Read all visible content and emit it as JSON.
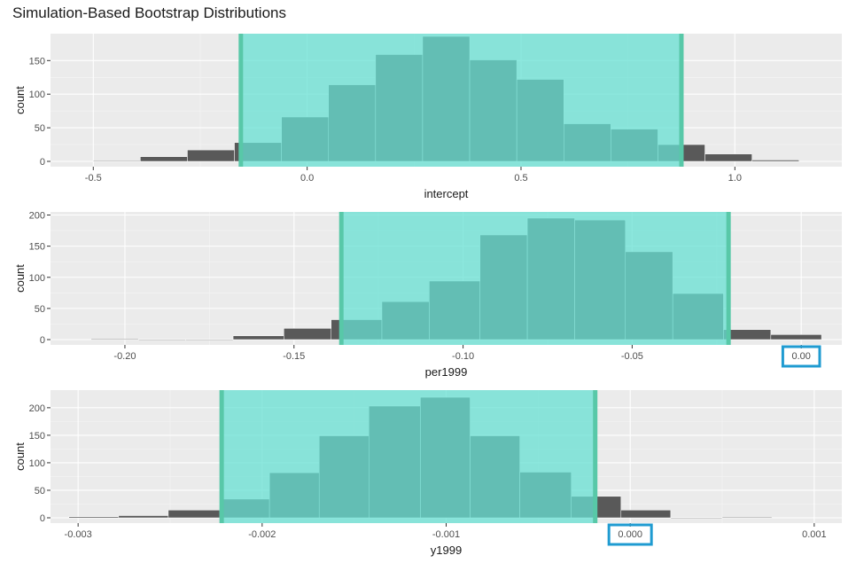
{
  "title": "Simulation-Based Bootstrap Distributions",
  "colors": {
    "panel_bg": "#ebebeb",
    "grid_major": "#ffffff",
    "bar_fill": "#595959",
    "bar_edge": "#ffffff",
    "ci_fill": "#67e0d3",
    "ci_fill_opacity": 0.75,
    "ci_line": "#58c8a8",
    "highlight_box": "#1f9bd1"
  },
  "chart_data": [
    {
      "type": "bar",
      "subtype": "histogram",
      "xlabel": "intercept",
      "ylabel": "count",
      "xlim": [
        -0.6,
        1.25
      ],
      "ylim": [
        0,
        190
      ],
      "xticks": [
        -0.5,
        0.0,
        0.5,
        1.0
      ],
      "xtick_labels": [
        "-0.5",
        "0.0",
        "0.5",
        "1.0"
      ],
      "yticks": [
        0,
        50,
        100,
        150
      ],
      "ytick_labels": [
        "0",
        "50",
        "100",
        "150"
      ],
      "bins": [
        {
          "x0": -0.5,
          "x1": -0.39,
          "count": 1
        },
        {
          "x0": -0.39,
          "x1": -0.28,
          "count": 7
        },
        {
          "x0": -0.28,
          "x1": -0.17,
          "count": 17
        },
        {
          "x0": -0.17,
          "x1": -0.06,
          "count": 28
        },
        {
          "x0": -0.06,
          "x1": 0.05,
          "count": 66
        },
        {
          "x0": 0.05,
          "x1": 0.16,
          "count": 114
        },
        {
          "x0": 0.16,
          "x1": 0.27,
          "count": 159
        },
        {
          "x0": 0.27,
          "x1": 0.38,
          "count": 186
        },
        {
          "x0": 0.38,
          "x1": 0.49,
          "count": 151
        },
        {
          "x0": 0.49,
          "x1": 0.6,
          "count": 122
        },
        {
          "x0": 0.6,
          "x1": 0.71,
          "count": 56
        },
        {
          "x0": 0.71,
          "x1": 0.82,
          "count": 48
        },
        {
          "x0": 0.82,
          "x1": 0.93,
          "count": 25
        },
        {
          "x0": 0.93,
          "x1": 1.04,
          "count": 11
        },
        {
          "x0": 1.04,
          "x1": 1.15,
          "count": 2
        }
      ],
      "ci": [
        -0.155,
        0.875
      ]
    },
    {
      "type": "bar",
      "subtype": "histogram",
      "xlabel": "per1999",
      "ylabel": "count",
      "xlim": [
        -0.222,
        0.012
      ],
      "ylim": [
        0,
        205
      ],
      "xticks": [
        -0.2,
        -0.15,
        -0.1,
        -0.05,
        0.0
      ],
      "xtick_labels": [
        "-0.20",
        "-0.15",
        "-0.10",
        "-0.05",
        "0.00"
      ],
      "highlight_tick": 4,
      "yticks": [
        0,
        50,
        100,
        150,
        200
      ],
      "ytick_labels": [
        "0",
        "50",
        "100",
        "150",
        "200"
      ],
      "bins": [
        {
          "x0": -0.21,
          "x1": -0.196,
          "count": 1
        },
        {
          "x0": -0.196,
          "x1": -0.182,
          "count": 0
        },
        {
          "x0": -0.182,
          "x1": -0.168,
          "count": 0
        },
        {
          "x0": -0.168,
          "x1": -0.153,
          "count": 6
        },
        {
          "x0": -0.153,
          "x1": -0.139,
          "count": 18
        },
        {
          "x0": -0.139,
          "x1": -0.124,
          "count": 32
        },
        {
          "x0": -0.124,
          "x1": -0.11,
          "count": 61
        },
        {
          "x0": -0.11,
          "x1": -0.095,
          "count": 94
        },
        {
          "x0": -0.095,
          "x1": -0.081,
          "count": 168
        },
        {
          "x0": -0.081,
          "x1": -0.067,
          "count": 195
        },
        {
          "x0": -0.067,
          "x1": -0.052,
          "count": 192
        },
        {
          "x0": -0.052,
          "x1": -0.038,
          "count": 141
        },
        {
          "x0": -0.038,
          "x1": -0.023,
          "count": 74
        },
        {
          "x0": -0.023,
          "x1": -0.009,
          "count": 16
        },
        {
          "x0": -0.009,
          "x1": 0.006,
          "count": 8
        }
      ],
      "ci": [
        -0.136,
        -0.0215
      ]
    },
    {
      "type": "bar",
      "subtype": "histogram",
      "xlabel": "y1999",
      "ylabel": "count",
      "xlim": [
        -0.00315,
        0.00115
      ],
      "ylim": [
        0,
        232
      ],
      "xticks": [
        -0.003,
        -0.002,
        -0.001,
        0.0,
        0.001
      ],
      "xtick_labels": [
        "-0.003",
        "-0.002",
        "-0.001",
        "0.000",
        "0.001"
      ],
      "highlight_tick": 3,
      "yticks": [
        0,
        50,
        100,
        150,
        200
      ],
      "ytick_labels": [
        "0",
        "50",
        "100",
        "150",
        "200"
      ],
      "bins": [
        {
          "x0": -0.00305,
          "x1": -0.00278,
          "count": 2
        },
        {
          "x0": -0.00278,
          "x1": -0.00251,
          "count": 4
        },
        {
          "x0": -0.00251,
          "x1": -0.00223,
          "count": 14
        },
        {
          "x0": -0.00223,
          "x1": -0.00196,
          "count": 34
        },
        {
          "x0": -0.00196,
          "x1": -0.00169,
          "count": 82
        },
        {
          "x0": -0.00169,
          "x1": -0.00142,
          "count": 149
        },
        {
          "x0": -0.00142,
          "x1": -0.00114,
          "count": 203
        },
        {
          "x0": -0.00114,
          "x1": -0.00087,
          "count": 219
        },
        {
          "x0": -0.00087,
          "x1": -0.0006,
          "count": 149
        },
        {
          "x0": -0.0006,
          "x1": -0.00032,
          "count": 83
        },
        {
          "x0": -0.00032,
          "x1": -5e-05,
          "count": 39
        },
        {
          "x0": -5e-05,
          "x1": 0.00022,
          "count": 14
        },
        {
          "x0": 0.00022,
          "x1": 0.0005,
          "count": 0
        },
        {
          "x0": 0.0005,
          "x1": 0.00077,
          "count": 1
        }
      ],
      "ci": [
        -0.00222,
        -0.00019
      ]
    }
  ]
}
